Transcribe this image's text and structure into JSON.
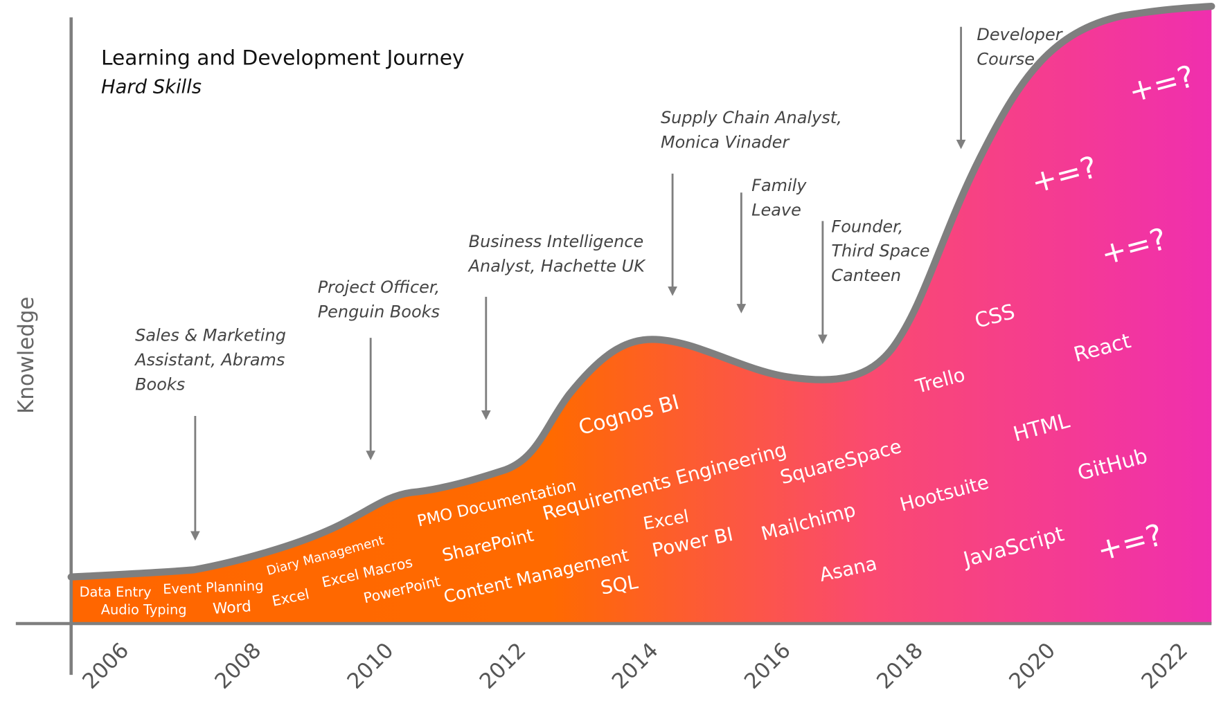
{
  "header": {
    "title": "Learning and Development Journey",
    "subtitle": "Hard Skills"
  },
  "y_axis_label": "Knowledge",
  "x_labels": [
    "2006",
    "2008",
    "2010",
    "2012",
    "2014",
    "2016",
    "2018",
    "2020",
    "2022"
  ],
  "milestones": [
    {
      "lines": [
        "Sales & Marketing",
        "Assistant, Abrams",
        "Books"
      ]
    },
    {
      "lines": [
        "Project Officer,",
        "Penguin Books"
      ]
    },
    {
      "lines": [
        "Business Intelligence",
        "Analyst, Hachette UK"
      ]
    },
    {
      "lines": [
        "Supply Chain Analyst,",
        "Monica Vinader"
      ]
    },
    {
      "lines": [
        "Family",
        "Leave"
      ]
    },
    {
      "lines": [
        "Founder,",
        "Third Space",
        "Canteen"
      ]
    },
    {
      "lines": [
        "Developer",
        "Course"
      ]
    }
  ],
  "skills": [
    "Data Entry",
    "Audio Typing",
    "Event Planning",
    "Word",
    "Diary Management",
    "Excel",
    "Excel Macros",
    "PowerPoint",
    "PMO Documentation",
    "SharePoint",
    "Requirements Engineering",
    "Content Management",
    "Cognos BI",
    "Excel",
    "Power BI",
    "SQL",
    "SquareSpace",
    "Mailchimp",
    "Asana",
    "Trello",
    "Hootsuite",
    "CSS",
    "HTML",
    "JavaScript",
    "React",
    "GitHub",
    "+=?",
    "+=?",
    "+=?",
    "+=?"
  ]
}
